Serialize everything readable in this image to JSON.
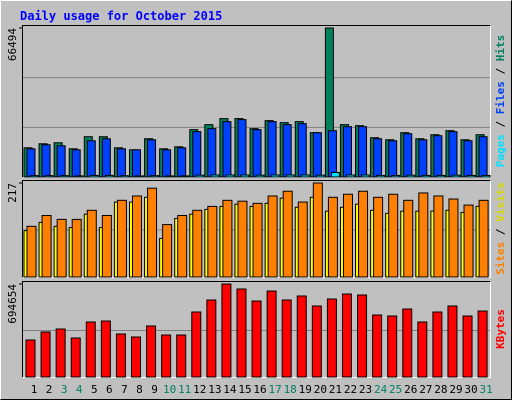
{
  "chart_data": [
    {
      "type": "bar",
      "title": "Daily usage for October 2015",
      "legend_separator": " / ",
      "ylim": [
        0,
        66494
      ],
      "yticks": [
        66494
      ],
      "series": [
        {
          "name": "Pages",
          "color": "#00e0ff",
          "values": [
            600,
            600,
            600,
            500,
            700,
            700,
            600,
            500,
            600,
            500,
            500,
            800,
            900,
            900,
            900,
            800,
            900,
            900,
            900,
            800,
            2000,
            900,
            900,
            700,
            700,
            800,
            700,
            700,
            800,
            700,
            700
          ]
        },
        {
          "name": "Files",
          "color": "#0040ff",
          "values": [
            12580,
            14380,
            13930,
            12130,
            16170,
            17070,
            12580,
            12130,
            16620,
            12130,
            13030,
            20220,
            21570,
            24710,
            25610,
            21120,
            24710,
            23360,
            23810,
            19770,
            20670,
            22460,
            22460,
            17070,
            16170,
            19320,
            16620,
            18420,
            20220,
            16170,
            17970
          ]
        },
        {
          "name": "Hits",
          "color": "#00805c",
          "values": [
            13030,
            14830,
            15280,
            12580,
            17970,
            17970,
            13030,
            12130,
            17070,
            12580,
            13480,
            21120,
            23360,
            26060,
            26060,
            21570,
            25160,
            24260,
            24710,
            19770,
            66494,
            23360,
            22910,
            17520,
            16620,
            19770,
            17070,
            18870,
            20670,
            16620,
            18870
          ]
        }
      ]
    },
    {
      "type": "bar",
      "legend_separator": " / ",
      "ylim": [
        0,
        217
      ],
      "yticks": [
        217
      ],
      "series": [
        {
          "name": "Sites",
          "color": "#ff8000",
          "values": [
            117,
            142,
            133,
            133,
            154,
            142,
            177,
            187,
            205,
            121,
            142,
            154,
            163,
            177,
            175,
            170,
            187,
            198,
            173,
            217,
            184,
            191,
            198,
            184,
            191,
            177,
            194,
            187,
            180,
            166,
            177
          ]
        },
        {
          "name": "Visits",
          "color": "#ffff00",
          "values": [
            107,
            126,
            117,
            114,
            145,
            114,
            173,
            173,
            184,
            89,
            135,
            145,
            156,
            163,
            168,
            163,
            170,
            182,
            161,
            184,
            152,
            161,
            168,
            154,
            147,
            152,
            152,
            152,
            154,
            149,
            163
          ]
        }
      ]
    },
    {
      "type": "bar",
      "ylim": [
        0,
        694654
      ],
      "yticks": [
        694654
      ],
      "series": [
        {
          "name": "KBytes",
          "color": "#ff0000",
          "values": [
            276400,
            336100,
            358500,
            291300,
            410800,
            418300,
            321200,
            298800,
            380900,
            313700,
            313700,
            485500,
            575100,
            694654,
            657300,
            567600,
            642300,
            575100,
            605000,
            530300,
            582600,
            619900,
            612500,
            463100,
            455600,
            507900,
            410800,
            485500,
            530300,
            455600,
            492900
          ]
        }
      ],
      "categories": [
        "1",
        "2",
        "3",
        "4",
        "5",
        "6",
        "7",
        "8",
        "9",
        "10",
        "11",
        "12",
        "13",
        "14",
        "15",
        "16",
        "17",
        "18",
        "19",
        "20",
        "21",
        "22",
        "23",
        "24",
        "25",
        "26",
        "27",
        "28",
        "29",
        "30",
        "31"
      ],
      "category_colors": [
        "#000000",
        "#000000",
        "#00805c",
        "#00805c",
        "#000000",
        "#000000",
        "#000000",
        "#000000",
        "#000000",
        "#00805c",
        "#00805c",
        "#000000",
        "#000000",
        "#000000",
        "#000000",
        "#000000",
        "#00805c",
        "#00805c",
        "#000000",
        "#000000",
        "#000000",
        "#000000",
        "#000000",
        "#00805c",
        "#00805c",
        "#000000",
        "#000000",
        "#000000",
        "#000000",
        "#000000",
        "#00805c"
      ]
    }
  ]
}
